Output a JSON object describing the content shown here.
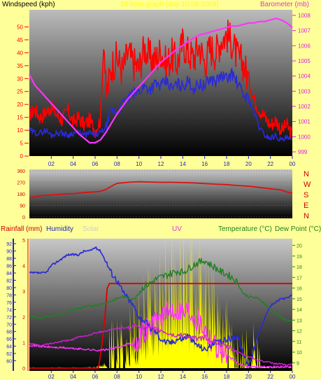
{
  "colors": {
    "background": "#ffff99",
    "windspeed": "#ff0000",
    "gust": "#ff0000",
    "average": "#2a2ad8",
    "barometer": "#ff33ff",
    "direction": "#dd1111",
    "humidity": "#2a2ad8",
    "solar": "#ffff00",
    "uv": "#ff33ff",
    "temperature": "#208020",
    "dew": "#dd0000",
    "rain": "#dd0000"
  },
  "top": {
    "left_title": "Windspeed (kph)",
    "center_title": "24 hour graph (day 10.06.2009)",
    "right_title": "Barometer (mb)"
  },
  "dir": {
    "compass": [
      "N",
      "W",
      "S",
      "E",
      "N"
    ]
  },
  "bottom": {
    "rain_title": "Rainfall (mm)",
    "humidity_title": "Humidity",
    "solar_title": "Solar",
    "uv_title": "UV",
    "temp_title": "Temperature (°C)",
    "dew_title": "Dew Point (°C)"
  },
  "chart_data": [
    {
      "type": "line",
      "panel": "wind-barometer",
      "x_ticks": [
        "02",
        "04",
        "06",
        "08",
        "10",
        "12",
        "14",
        "16",
        "18",
        "20",
        "22",
        "00"
      ],
      "xlim": [
        0,
        24
      ],
      "left_axis": {
        "label": "Windspeed (kph)",
        "ylim": [
          0,
          55
        ],
        "ticks": [
          0,
          5,
          10,
          15,
          20,
          25,
          30,
          35,
          40,
          45,
          50
        ]
      },
      "right_axis": {
        "label": "Barometer (mb)",
        "ylim": [
          999,
          1008
        ],
        "ticks": [
          999,
          1000,
          1001,
          1002,
          1003,
          1004,
          1005,
          1006,
          1007,
          1008
        ]
      },
      "series": [
        {
          "axis": "left",
          "color_key": "gust",
          "x": [
            0,
            0.5,
            1,
            1.5,
            2,
            2.5,
            3,
            3.5,
            4,
            4.5,
            5,
            5.5,
            6,
            6.5,
            6.8,
            7,
            7.5,
            8,
            8.5,
            9,
            9.5,
            10,
            10.5,
            11,
            11.5,
            12,
            12.5,
            13,
            13.5,
            14,
            14.5,
            15,
            15.5,
            16,
            16.5,
            17,
            17.5,
            18,
            18.5,
            19,
            19.5,
            20,
            20.5,
            21,
            21.5,
            22,
            22.5,
            23,
            23.5,
            24
          ],
          "y": [
            16,
            18,
            15,
            17,
            19,
            16,
            14,
            18,
            13,
            15,
            12,
            14,
            10,
            14,
            46,
            22,
            35,
            38,
            33,
            40,
            36,
            34,
            42,
            38,
            37,
            41,
            35,
            39,
            36,
            44,
            40,
            38,
            43,
            36,
            42,
            40,
            45,
            47,
            44,
            38,
            36,
            30,
            22,
            18,
            15,
            12,
            14,
            10,
            12,
            8
          ]
        },
        {
          "axis": "left",
          "color_key": "average",
          "x": [
            0,
            0.5,
            1,
            1.5,
            2,
            2.5,
            3,
            3.5,
            4,
            4.5,
            5,
            5.5,
            6,
            6.5,
            7,
            7.5,
            8,
            8.5,
            9,
            9.5,
            10,
            10.5,
            11,
            11.5,
            12,
            12.5,
            13,
            13.5,
            14,
            14.5,
            15,
            15.5,
            16,
            16.5,
            17,
            17.5,
            18,
            18.5,
            19,
            19.5,
            20,
            20.5,
            21,
            21.5,
            22,
            22.5,
            23,
            23.5,
            24
          ],
          "y": [
            10,
            9,
            9,
            10,
            8,
            9,
            9,
            8,
            9,
            9,
            8,
            9,
            8,
            9,
            11,
            18,
            17,
            20,
            22,
            24,
            25,
            27,
            26,
            28,
            27,
            29,
            26,
            28,
            27,
            29,
            26,
            28,
            27,
            30,
            29,
            31,
            30,
            32,
            28,
            24,
            22,
            17,
            11,
            8,
            7,
            8,
            6,
            7,
            6
          ]
        },
        {
          "axis": "right",
          "color_key": "barometer",
          "x": [
            0,
            0.5,
            1,
            1.5,
            2,
            2.5,
            3,
            3.5,
            4,
            4.5,
            5,
            5.5,
            6,
            6.5,
            7,
            7.5,
            8,
            8.5,
            9,
            9.5,
            10,
            10.5,
            11,
            11.5,
            12,
            12.5,
            13,
            13.5,
            14,
            14.5,
            15,
            15.5,
            16,
            16.5,
            17,
            17.5,
            18,
            18.5,
            19,
            19.5,
            20,
            20.5,
            21,
            21.5,
            22,
            22.5,
            23,
            23.5,
            24
          ],
          "y": [
            1004.1,
            1003.4,
            1003.0,
            1002.6,
            1002.2,
            1001.8,
            1001.4,
            1001.0,
            1000.6,
            1000.2,
            999.9,
            999.6,
            999.6,
            999.8,
            1000.3,
            1000.9,
            1001.5,
            1002.0,
            1002.5,
            1002.9,
            1003.3,
            1003.7,
            1004.1,
            1004.5,
            1004.9,
            1005.2,
            1005.5,
            1005.8,
            1006.0,
            1006.3,
            1006.5,
            1006.7,
            1006.8,
            1006.9,
            1007.0,
            1007.1,
            1007.2,
            1007.3,
            1007.3,
            1007.4,
            1007.5,
            1007.5,
            1007.6,
            1007.6,
            1007.7,
            1007.8,
            1007.7,
            1007.5,
            1007.2
          ]
        }
      ]
    },
    {
      "type": "line",
      "panel": "wind-direction",
      "xlim": [
        0,
        24
      ],
      "ylim": [
        0,
        360
      ],
      "y_ticks": [
        0,
        90,
        180,
        270,
        360
      ],
      "series": [
        {
          "color_key": "direction",
          "x": [
            0,
            1,
            2,
            3,
            4,
            5,
            6,
            6.5,
            7,
            7.5,
            8,
            9,
            10,
            11,
            12,
            13,
            14,
            15,
            16,
            17,
            18,
            19,
            20,
            21,
            22,
            23,
            23.5,
            24
          ],
          "y": [
            150,
            165,
            172,
            178,
            182,
            190,
            196,
            200,
            215,
            240,
            262,
            270,
            275,
            272,
            270,
            270,
            268,
            265,
            260,
            256,
            252,
            245,
            240,
            230,
            220,
            210,
            195,
            185
          ]
        }
      ]
    },
    {
      "type": "line",
      "panel": "rain-humidity-solar-uv-temp",
      "xlim": [
        0,
        24
      ],
      "rain_axis": {
        "label": "Rainfall (mm)",
        "ylim": [
          0,
          5
        ],
        "ticks": [
          0,
          1,
          2,
          3,
          4,
          5
        ]
      },
      "humidity_axis": {
        "label": "Humidity",
        "ylim": [
          58,
          93
        ],
        "ticks": [
          60,
          62,
          64,
          66,
          68,
          70,
          72,
          74,
          76,
          78,
          80,
          82,
          84,
          86,
          88,
          90,
          92
        ]
      },
      "temp_axis": {
        "label": "Temperature (°C)",
        "ylim": [
          8.5,
          20.5
        ],
        "ticks": [
          9,
          10,
          11,
          12,
          13,
          14,
          15,
          16,
          17,
          18,
          19,
          20
        ]
      },
      "series": [
        {
          "name": "Humidity",
          "color_key": "humidity",
          "x": [
            0,
            0.5,
            1,
            1.5,
            2,
            2.5,
            3,
            3.5,
            4,
            4.5,
            5,
            5.5,
            6,
            6.5,
            7,
            7.5,
            8,
            8.5,
            9,
            9.5,
            10,
            10.5,
            11,
            11.5,
            12,
            12.5,
            13,
            13.5,
            14,
            14.5,
            15,
            15.5,
            16,
            16.5,
            17,
            17.5,
            18,
            18.5,
            19,
            19.5,
            20,
            20.5,
            21,
            21.5,
            22,
            22.5,
            23,
            23.5,
            24
          ],
          "y": [
            84,
            84,
            84,
            84,
            86,
            87,
            88,
            89,
            89,
            89,
            90,
            90,
            91,
            90,
            87,
            84,
            82,
            79,
            77,
            75,
            72,
            71,
            69,
            68,
            66,
            65,
            65,
            66,
            66,
            67,
            65,
            64,
            63,
            64,
            65,
            65,
            66,
            66,
            67,
            62,
            59,
            63,
            68,
            72,
            75,
            76,
            77,
            77,
            78
          ]
        },
        {
          "name": "Temperature",
          "color_key": "temperature",
          "x": [
            0,
            0.5,
            1,
            1.5,
            2,
            2.5,
            3,
            3.5,
            4,
            4.5,
            5,
            5.5,
            6,
            6.5,
            7,
            7.5,
            8,
            8.5,
            9,
            9.5,
            10,
            10.5,
            11,
            11.5,
            12,
            12.5,
            13,
            13.5,
            14,
            14.5,
            15,
            15.5,
            16,
            16.5,
            17,
            17.5,
            18,
            18.5,
            19,
            19.5,
            20,
            20.5,
            21,
            21.5,
            22,
            22.5,
            23,
            23.5,
            24
          ],
          "y": [
            13.3,
            13.3,
            13.2,
            13.3,
            13.4,
            13.5,
            13.6,
            13.8,
            14.0,
            14.1,
            14.2,
            14.3,
            14.4,
            14.5,
            14.6,
            14.8,
            15.0,
            15.2,
            15.1,
            14.9,
            15.6,
            16.2,
            16.4,
            16.8,
            17.0,
            17.2,
            17.4,
            17.6,
            17.5,
            17.8,
            18.2,
            18.4,
            18.6,
            18.2,
            17.9,
            17.5,
            17.3,
            17.0,
            16.5,
            15.5,
            15.2,
            15.1,
            15.0,
            14.5,
            14.0,
            13.6,
            13.2,
            13.0,
            12.8
          ]
        },
        {
          "name": "Dew Point",
          "color_key": "dew",
          "x": [
            0,
            0.5,
            1,
            1.5,
            2,
            2.5,
            3,
            3.5,
            4,
            4.5,
            5,
            5.5,
            6,
            6.5,
            7,
            7.5,
            8,
            8.5,
            9,
            9.5,
            10,
            10.5,
            11,
            11.5,
            12,
            12.5,
            13,
            13.5,
            14,
            14.5,
            15,
            15.5,
            16,
            16.5,
            17,
            17.5,
            18,
            18.5,
            19,
            19.5,
            20,
            20.5,
            21,
            21.5,
            22,
            22.5,
            23,
            23.5,
            24
          ],
          "y": [
            10.8,
            10.7,
            10.6,
            10.7,
            10.8,
            10.9,
            11.0,
            11.1,
            11.2,
            11.4,
            11.5,
            11.6,
            11.8,
            11.9,
            12.0,
            12.1,
            12.2,
            12.3,
            12.2,
            12.4,
            12.5,
            12.3,
            12.2,
            12.1,
            12.0,
            11.8,
            11.6,
            11.5,
            11.7,
            11.4,
            11.3,
            11.2,
            11.4,
            11.1,
            10.9,
            10.7,
            10.5,
            10.3,
            10.0,
            9.8,
            9.6,
            9.4,
            9.2,
            9.1,
            9.0,
            8.9,
            8.9,
            8.8,
            8.8
          ]
        },
        {
          "name": "Rainfall",
          "color_key": "rain",
          "axis": "rain",
          "x": [
            0,
            6.3,
            6.6,
            6.9,
            7.1,
            7.3,
            24
          ],
          "y": [
            0,
            0,
            0.8,
            2.0,
            3.1,
            3.3,
            3.3
          ]
        },
        {
          "name": "UV",
          "color_key": "uv",
          "x": [
            0,
            0.5,
            1,
            1.5,
            2,
            2.5,
            3,
            3.5,
            4,
            4.5,
            5,
            5.5,
            6,
            6.5,
            7,
            7.5,
            8,
            8.5,
            9,
            9.5,
            10,
            10.5,
            11,
            11.5,
            12,
            12.5,
            13,
            13.5,
            14,
            14.5,
            15,
            15.5,
            16,
            16.5,
            17,
            17.5,
            18,
            18.5,
            19,
            19.5,
            20,
            20.5,
            21,
            21.5,
            22,
            22.5,
            23,
            23.5,
            24
          ],
          "y": [
            0.9,
            0.88,
            0.85,
            0.83,
            0.82,
            0.8,
            0.8,
            0.78,
            0.76,
            0.75,
            0.74,
            0.72,
            0.7,
            0.7,
            0.72,
            0.75,
            0.8,
            0.85,
            0.95,
            0.9,
            1.2,
            1.5,
            1.6,
            1.8,
            2.0,
            2.1,
            2.3,
            2.4,
            2.2,
            2.3,
            2.1,
            1.8,
            1.6,
            1.2,
            0.9,
            0.7,
            0.5,
            0.35,
            0.2,
            0.1,
            0.05,
            0.05,
            0.05,
            0.05,
            0.05,
            0.05,
            0.05,
            0.05,
            0.05
          ]
        },
        {
          "name": "Solar",
          "color_key": "solar",
          "axis": "rain",
          "x": [
            0,
            5,
            6,
            6.5,
            7,
            7.5,
            8,
            8.5,
            9,
            9.5,
            10,
            10.5,
            11,
            11.5,
            12,
            12.5,
            13,
            13.5,
            14,
            14.5,
            15,
            15.5,
            16,
            16.5,
            17,
            17.5,
            18,
            18.5,
            19,
            19.5,
            20,
            20.5,
            21,
            21.5,
            22,
            24
          ],
          "y": [
            0,
            0,
            0.05,
            0.1,
            0.2,
            0.35,
            0.5,
            0.8,
            1.2,
            1.6,
            2.1,
            2.5,
            2.8,
            3.1,
            3.5,
            3.8,
            4.0,
            4.2,
            4.4,
            4.1,
            3.9,
            3.6,
            3.2,
            2.8,
            2.4,
            2.0,
            1.6,
            1.2,
            0.8,
            0.5,
            0.3,
            0.15,
            0.08,
            0.04,
            0.02,
            0
          ]
        }
      ]
    }
  ]
}
